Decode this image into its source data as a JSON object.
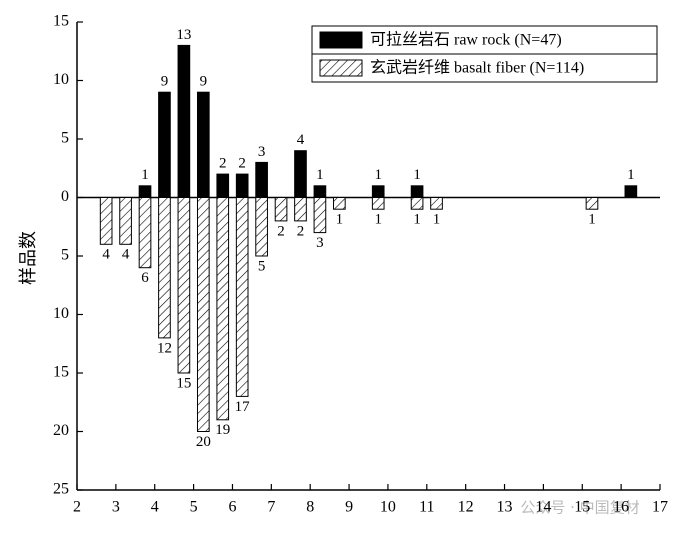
{
  "chart_data": {
    "type": "bar",
    "y_label": "样品数",
    "watermark": "公众号 · 中国复材",
    "xlim": [
      2,
      17
    ],
    "xticks": [
      2,
      3,
      4,
      5,
      6,
      7,
      8,
      9,
      10,
      11,
      12,
      13,
      14,
      15,
      16,
      17
    ],
    "ylim": [
      -25,
      15
    ],
    "yticks": [
      {
        "value": -25,
        "label": "25"
      },
      {
        "value": -20,
        "label": "20"
      },
      {
        "value": -15,
        "label": "15"
      },
      {
        "value": -10,
        "label": "10"
      },
      {
        "value": -5,
        "label": "5"
      },
      0,
      5,
      10,
      15
    ],
    "legend": "upper right",
    "series": [
      {
        "name": "可拉丝岩石 raw rock (N=47)",
        "color": "#000000",
        "hatch": false,
        "x": [
          3.75,
          4.25,
          4.75,
          5.25,
          5.75,
          6.25,
          6.75,
          7.75,
          8.25,
          9.75,
          10.75,
          16.25
        ],
        "values": [
          1,
          9,
          13,
          9,
          2,
          2,
          3,
          4,
          1,
          1,
          1,
          1
        ]
      },
      {
        "name": "玄武岩纤维 basalt fiber (N=114)",
        "color": "#000000",
        "hatch": true,
        "x": [
          2.75,
          3.25,
          3.75,
          4.25,
          4.75,
          5.25,
          5.75,
          6.25,
          6.75,
          7.25,
          7.75,
          8.25,
          8.75,
          9.75,
          10.75,
          11.25,
          15.25
        ],
        "values": [
          -4,
          -4,
          -6,
          -12,
          -15,
          -20,
          -19,
          -17,
          -5,
          -2,
          -2,
          -3,
          -1,
          -1,
          -1,
          -1,
          -1
        ],
        "value_labels": [
          "4",
          "4",
          "6",
          "12",
          "15",
          "20",
          "19",
          "17",
          "5",
          "2",
          "2",
          "3",
          "1",
          "1",
          "1",
          "1",
          "1"
        ]
      }
    ]
  }
}
